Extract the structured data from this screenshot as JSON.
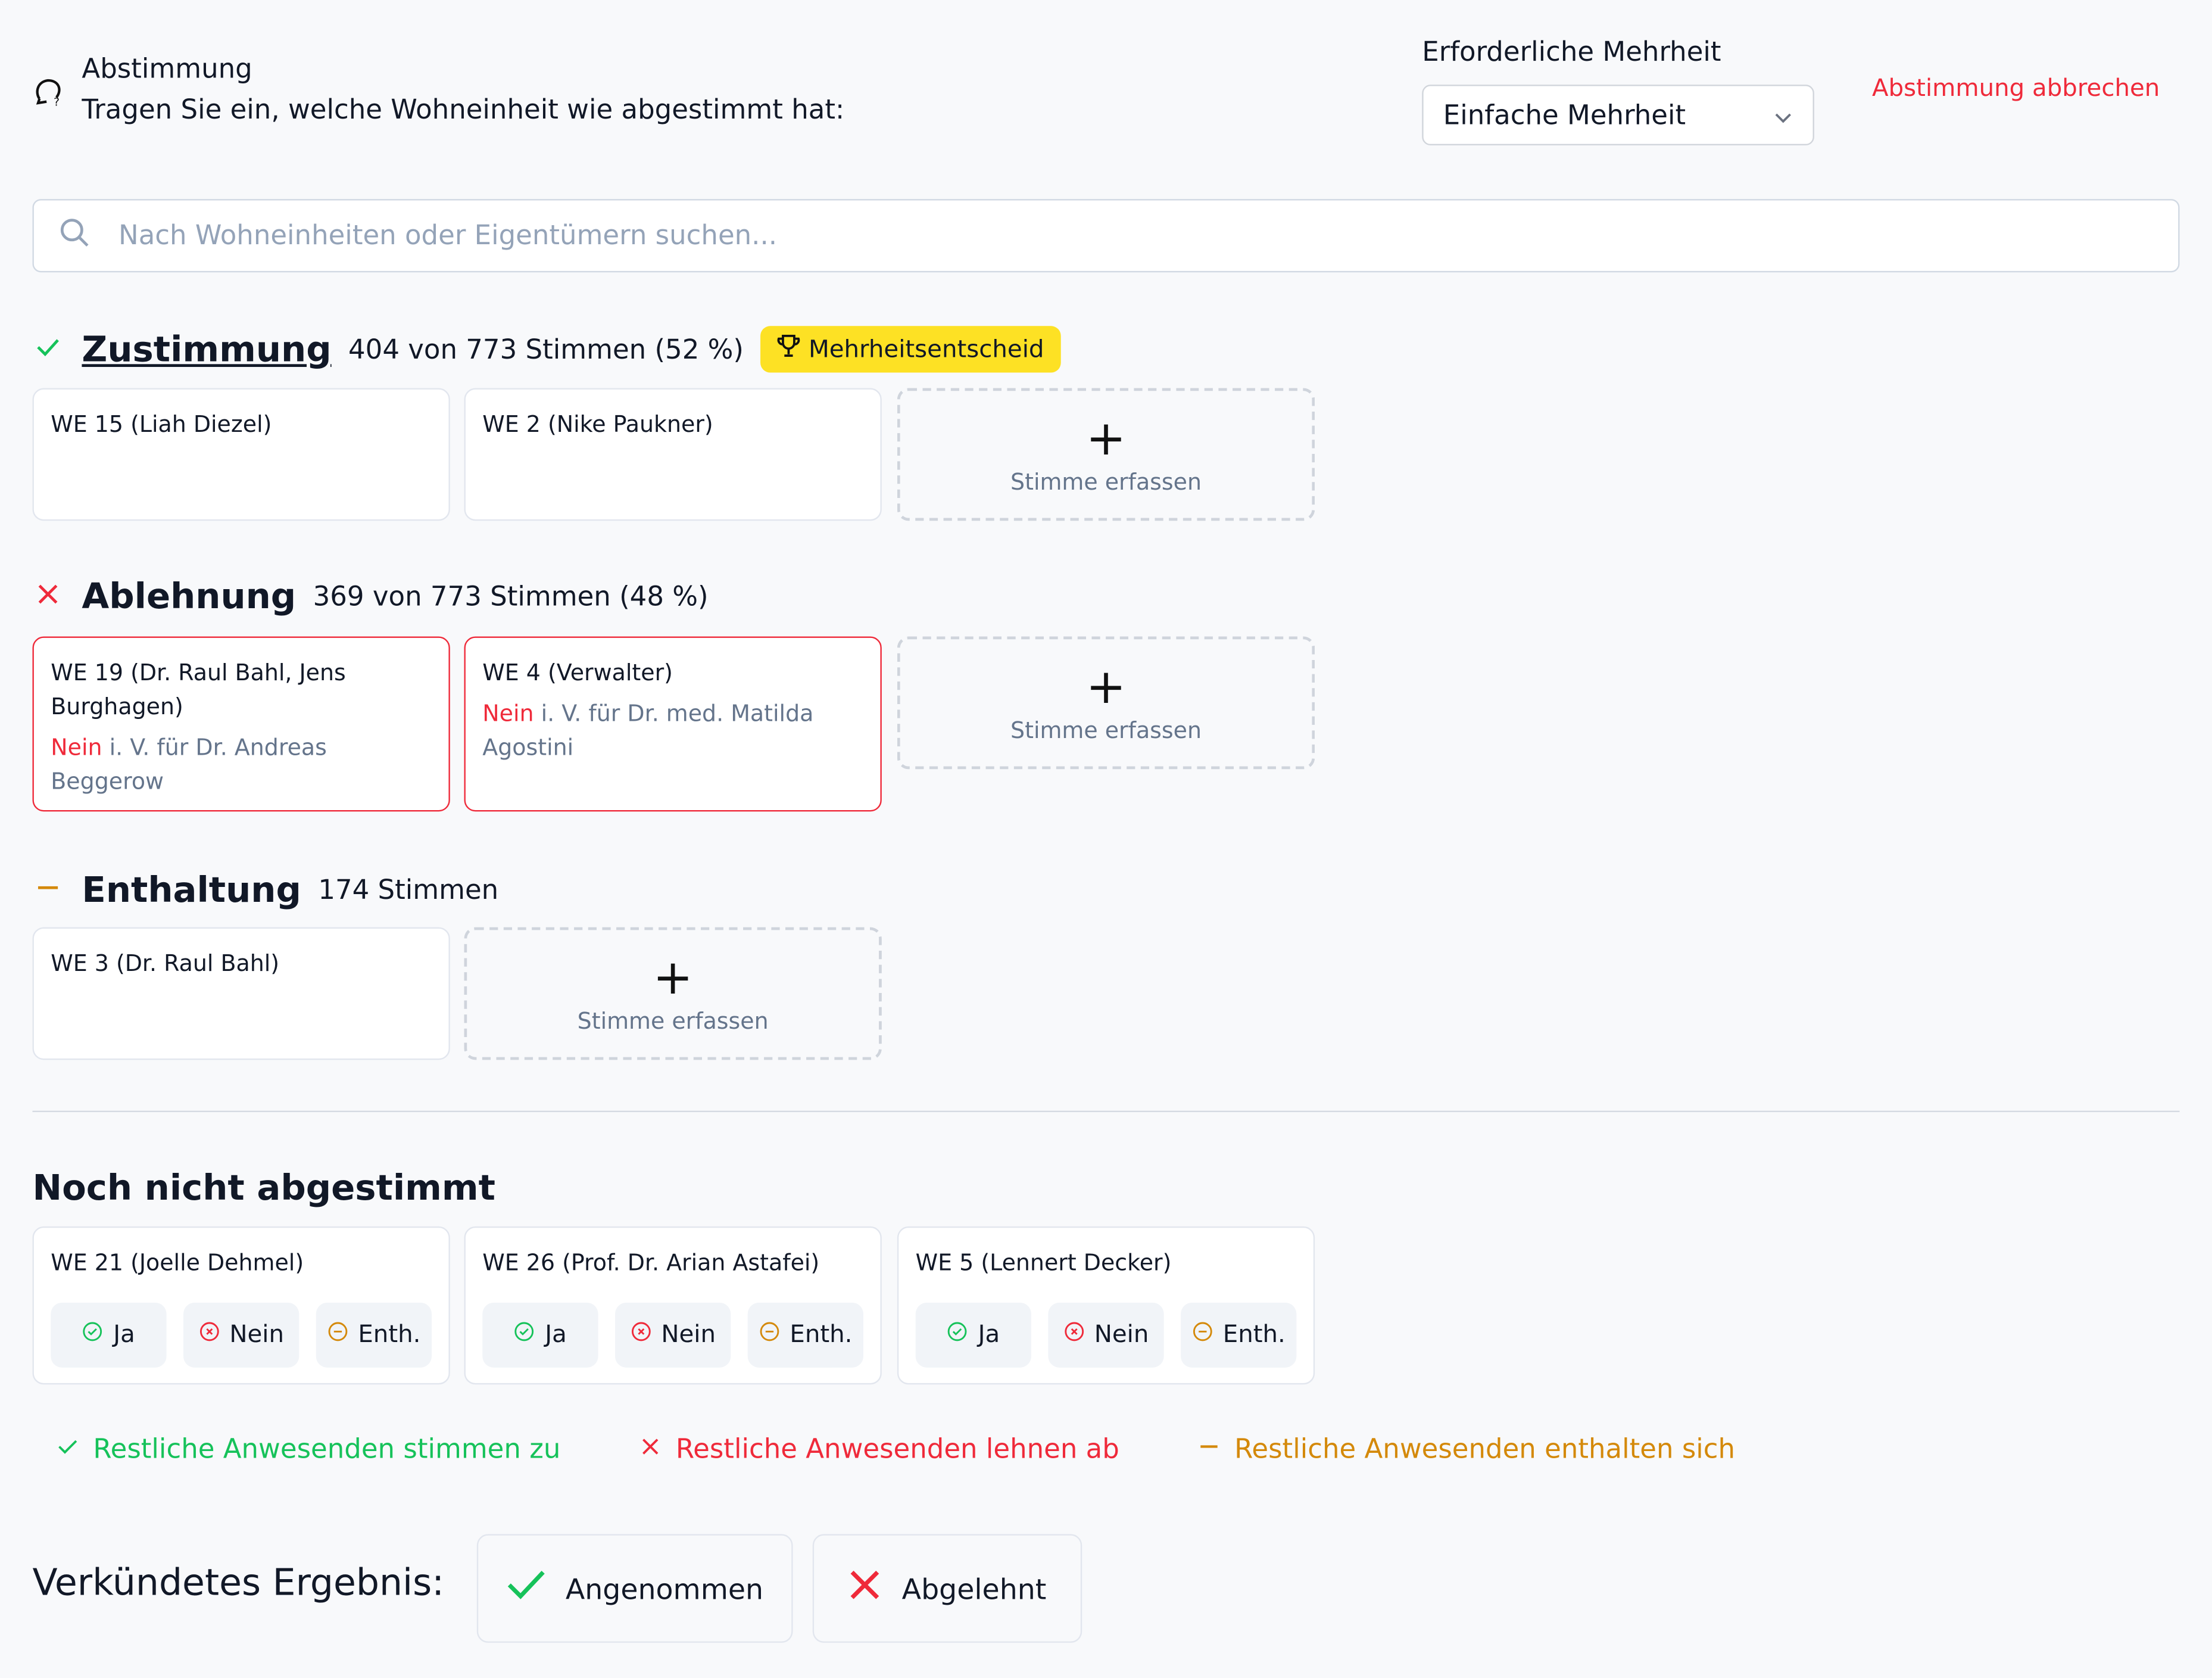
{
  "header": {
    "title": "Abstimmung",
    "subtitle": "Tragen Sie ein, welche Wohneinheit wie abgestimmt hat:",
    "icon": "chat-question-icon"
  },
  "majority": {
    "label": "Erforderliche Mehrheit",
    "selected": "Einfache Mehrheit"
  },
  "cancel_label": "Abstimmung abbrechen",
  "search": {
    "placeholder": "Nach Wohneinheiten oder Eigentümern suchen..."
  },
  "colors": {
    "green": "#16c25a",
    "red": "#ef2a3a",
    "orange": "#d4890a",
    "badge": "#fde124"
  },
  "sections": {
    "yes": {
      "title": "Zustimmung",
      "count": "404 von 773 Stimmen (52 %)",
      "badge": "Mehrheitsentscheid",
      "cards": [
        {
          "unit": "WE 15 (Liah Diezel)"
        },
        {
          "unit": "WE 2 (Nike Paukner)"
        }
      ]
    },
    "no": {
      "title": "Ablehnung",
      "count": "369 von 773 Stimmen (48 %)",
      "cards": [
        {
          "unit": "WE 19 (Dr. Raul Bahl, Jens Burghagen)",
          "vote": "Nein",
          "proxy": "i. V. für Dr. Andreas Beggerow"
        },
        {
          "unit": "WE 4 (Verwalter)",
          "vote": "Nein",
          "proxy": "i. V. für Dr. med. Matilda Agostini"
        }
      ]
    },
    "abstain": {
      "title": "Enthaltung",
      "count": "174 Stimmen",
      "cards": [
        {
          "unit": "WE 3 (Dr. Raul Bahl)"
        }
      ]
    }
  },
  "add_vote_label": "Stimme erfassen",
  "pending": {
    "title": "Noch nicht abgestimmt",
    "buttons": {
      "yes": "Ja",
      "no": "Nein",
      "abstain": "Enth."
    },
    "cards": [
      {
        "unit": "WE 21 (Joelle Dehmel)"
      },
      {
        "unit": "WE 26 (Prof. Dr. Arian Astafei)"
      },
      {
        "unit": "WE 5 (Lennert Decker)"
      }
    ]
  },
  "rest": {
    "yes": "Restliche Anwesenden stimmen zu",
    "no": "Restliche Anwesenden lehnen ab",
    "abstain": "Restliche Anwesenden enthalten sich"
  },
  "result": {
    "label": "Verkündetes Ergebnis:",
    "accepted": "Angenommen",
    "rejected": "Abgelehnt"
  }
}
